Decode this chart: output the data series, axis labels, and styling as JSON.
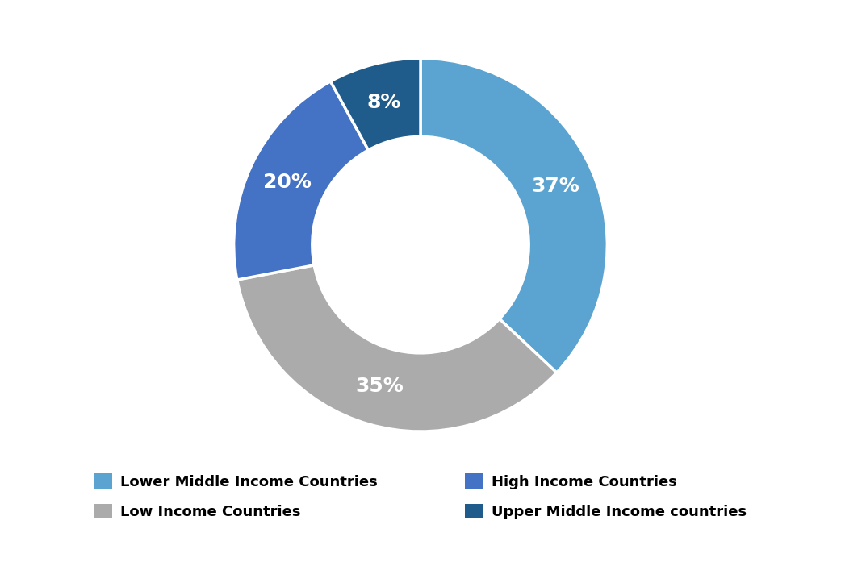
{
  "labels": [
    "Lower Middle Income Countries",
    "Low Income Countries",
    "High Income Countries",
    "Upper Middle Income countries"
  ],
  "values": [
    37,
    35,
    20,
    8
  ],
  "colors": [
    "#5BA3D0",
    "#ABABAB",
    "#4472C4",
    "#1F5C8B"
  ],
  "pct_labels": [
    "37%",
    "35%",
    "20%",
    "8%"
  ],
  "legend_order": [
    0,
    1,
    2,
    3
  ],
  "background_color": "#FFFFFF",
  "pct_fontsize": 18,
  "legend_fontsize": 13,
  "donut_width": 0.42
}
